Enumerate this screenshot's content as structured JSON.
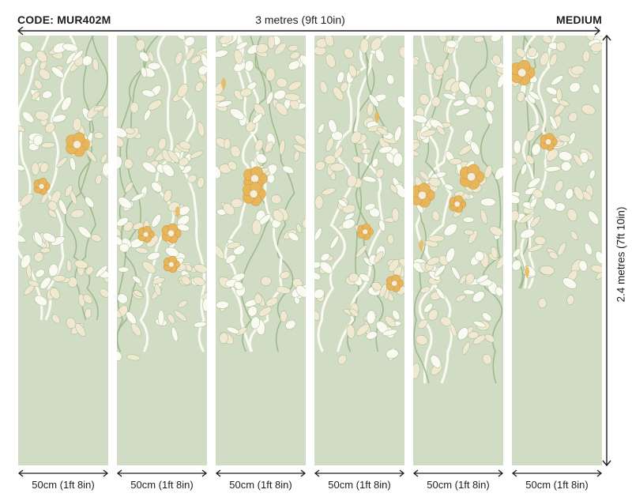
{
  "header": {
    "code": "CODE: MUR402M",
    "total_width": "3 metres (9ft 10in)",
    "size": "MEDIUM"
  },
  "height_label": "2.4 metres (7ft 10in)",
  "panels": [
    {
      "width_label": "50cm (1ft 8in)",
      "fill": 0.7
    },
    {
      "width_label": "50cm (1ft 8in)",
      "fill": 0.78
    },
    {
      "width_label": "50cm (1ft 8in)",
      "fill": 0.74
    },
    {
      "width_label": "50cm (1ft 8in)",
      "fill": 0.78
    },
    {
      "width_label": "50cm (1ft 8in)",
      "fill": 0.85
    },
    {
      "width_label": "50cm (1ft 8in)",
      "fill": 0.65
    }
  ],
  "colors": {
    "background_panel": "#d1dcc4",
    "leaf_cream": "#f1e8d2",
    "leaf_white": "#fbfaf2",
    "stem_green": "#9fb98e",
    "flower_gold": "#e7b55a",
    "flower_center": "#f6eed6"
  },
  "icons": [
    "leaf-pattern",
    "rose-flower-icon",
    "dimension-arrow-icon"
  ]
}
